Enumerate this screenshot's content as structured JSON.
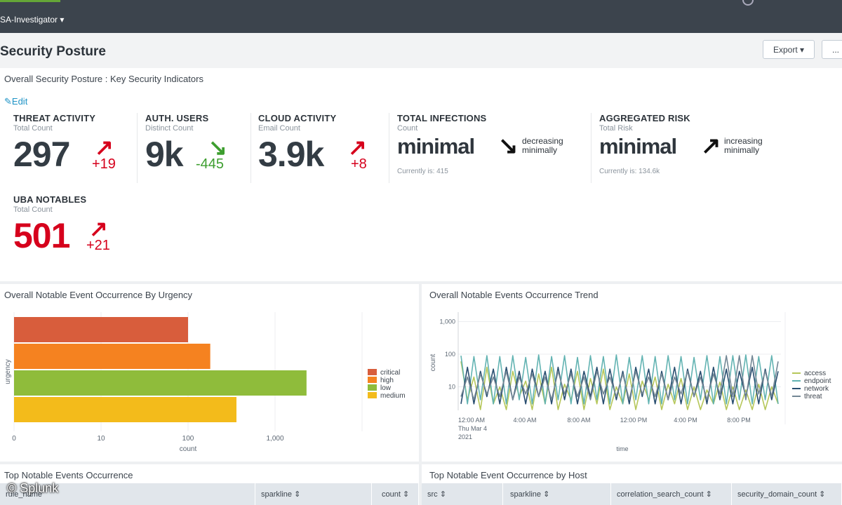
{
  "app": {
    "menu_label": "SA-Investigator ▾"
  },
  "page": {
    "title": "Security Posture",
    "export_label": "Export ▾",
    "more_label": "..."
  },
  "kpi_panel": {
    "title": "Overall Security Posture : Key Security Indicators",
    "edit_label": "Edit",
    "items": [
      {
        "title": "THREAT ACTIVITY",
        "subtitle": "Total Count",
        "value": "297",
        "delta": "+19",
        "direction": "up",
        "color": "#d6001c"
      },
      {
        "title": "AUTH. USERS",
        "subtitle": "Distinct Count",
        "value": "9k",
        "delta": "-445",
        "direction": "down",
        "color": "#3d9e2f"
      },
      {
        "title": "CLOUD ACTIVITY",
        "subtitle": "Email Count",
        "value": "3.9k",
        "delta": "+8",
        "direction": "up",
        "color": "#d6001c"
      },
      {
        "title": "TOTAL INFECTIONS",
        "subtitle": "Count",
        "value": "minimal",
        "trend": "decreasing minimally",
        "trend_line1": "decreasing",
        "trend_line2": "minimally",
        "current": "Currently is: 415"
      },
      {
        "title": "AGGREGATED RISK",
        "subtitle": "Total Risk",
        "value": "minimal",
        "trend": "increasing minimally",
        "trend_line1": "increasing",
        "trend_line2": "minimally",
        "current": "Currently is: 134.6k"
      },
      {
        "title": "UBA NOTABLES",
        "subtitle": "Total Count",
        "value": "501",
        "delta": "+21",
        "direction": "up",
        "color": "#d6001c"
      }
    ]
  },
  "chart_data": [
    {
      "type": "bar",
      "orientation": "horizontal",
      "title": "Overall Notable Event Occurrence By Urgency",
      "xlabel": "count",
      "ylabel": "urgency",
      "xscale": "log",
      "xticks": [
        "0",
        "10",
        "100",
        "1,000"
      ],
      "categories": [
        "critical",
        "high",
        "low",
        "medium"
      ],
      "values": [
        100,
        180,
        2300,
        360
      ],
      "colors": [
        "#d85d3c",
        "#f58220",
        "#8fbc3b",
        "#f3bb1b"
      ],
      "legend_position": "right"
    },
    {
      "type": "line",
      "title": "Overall Notable Events Occurrence Trend",
      "xlabel": "time",
      "ylabel": "count",
      "yscale": "log",
      "yticks": [
        "1,000",
        "100",
        "10"
      ],
      "xticks": [
        "12:00 AM\nThu Mar 4\n2021",
        "4:00 AM",
        "8:00 AM",
        "12:00 PM",
        "4:00 PM",
        "8:00 PM"
      ],
      "xtick_lines": [
        [
          "12:00 AM",
          "Thu Mar 4",
          "2021"
        ],
        [
          "4:00 AM"
        ],
        [
          "8:00 AM"
        ],
        [
          "12:00 PM"
        ],
        [
          "4:00 PM"
        ],
        [
          "8:00 PM"
        ]
      ],
      "legend_position": "right",
      "series": [
        {
          "name": "access",
          "color": "#b6c75a",
          "values": [
            60,
            4,
            20,
            2,
            40,
            3,
            10,
            2,
            30,
            5,
            15,
            2,
            25,
            3,
            40,
            2,
            12,
            4,
            30,
            2,
            18,
            3,
            35,
            2,
            10,
            3,
            25,
            2,
            15,
            4,
            20,
            2,
            12,
            3,
            18,
            2,
            10,
            2,
            8,
            3,
            14,
            2,
            10,
            2,
            8,
            2,
            12,
            2,
            10,
            3
          ]
        },
        {
          "name": "endpoint",
          "color": "#62b3b2",
          "values": [
            90,
            3,
            85,
            4,
            90,
            3,
            85,
            3,
            90,
            4,
            80,
            3,
            95,
            3,
            85,
            4,
            90,
            3,
            80,
            3,
            90,
            4,
            85,
            3,
            95,
            3,
            80,
            4,
            90,
            3,
            85,
            3,
            90,
            4,
            85,
            3,
            80,
            4,
            90,
            3,
            85,
            3,
            90,
            4,
            95,
            3,
            85,
            4,
            90,
            3
          ]
        },
        {
          "name": "network",
          "color": "#294e70",
          "values": [
            3,
            40,
            3,
            30,
            5,
            35,
            3,
            40,
            4,
            30,
            3,
            35,
            5,
            30,
            3,
            40,
            4,
            35,
            3,
            30,
            5,
            40,
            3,
            35,
            4,
            30,
            3,
            40,
            5,
            35,
            3,
            30,
            4,
            40,
            3,
            35,
            5,
            30,
            3,
            40,
            4,
            35,
            3,
            30,
            5,
            40,
            3,
            35,
            4,
            30
          ]
        },
        {
          "name": "threat",
          "color": "#738795",
          "values": [
            5,
            20,
            4,
            25,
            6,
            20,
            5,
            30,
            4,
            20,
            6,
            25,
            5,
            20,
            4,
            30,
            6,
            25,
            5,
            20,
            4,
            30,
            6,
            20,
            5,
            25,
            4,
            30,
            6,
            20,
            5,
            25,
            4,
            20,
            6,
            30,
            5,
            20,
            4,
            25,
            6,
            90,
            5,
            90,
            4,
            90,
            6,
            30,
            5,
            60
          ]
        }
      ]
    }
  ],
  "bottom": {
    "left_title": "Top Notable Events Occurrence",
    "right_title": "Top Notable Event Occurrence by Host",
    "left_columns": [
      "rule_name",
      "sparkline ⇕",
      "count ⇕"
    ],
    "right_columns": [
      "src ⇕",
      "sparkline ⇕",
      "correlation_search_count ⇕",
      "security_domain_count ⇕"
    ]
  },
  "watermark": "© Splunk"
}
